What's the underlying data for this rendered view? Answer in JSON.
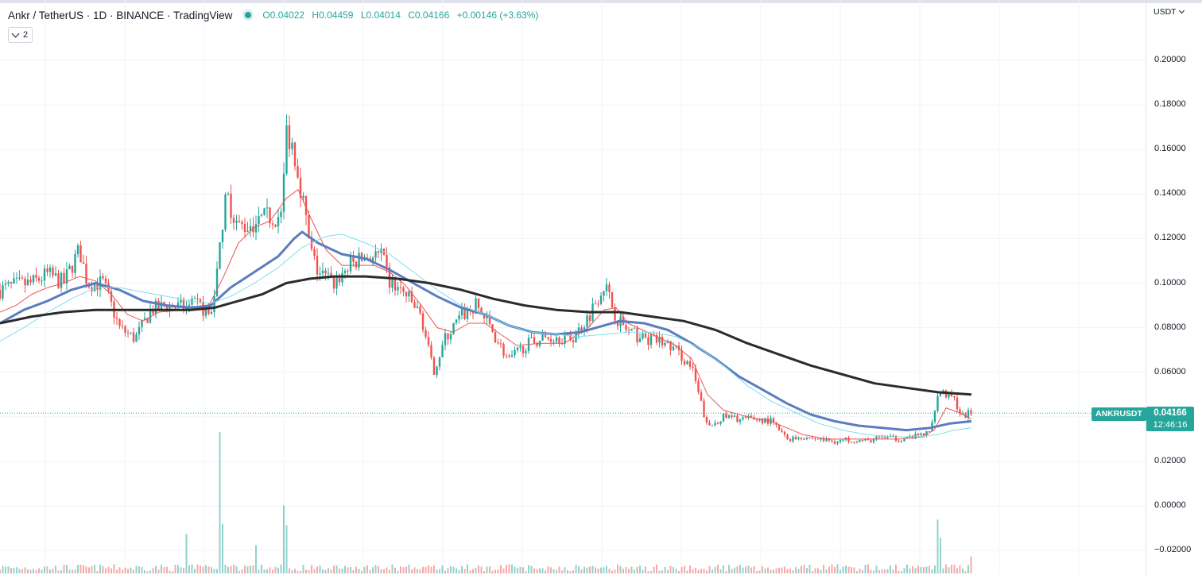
{
  "legend": {
    "title": "Ankr / TetherUS · 1D · BINANCE · TradingView",
    "open": "O0.04022",
    "high": "H0.04459",
    "low": "L0.04014",
    "close": "C0.04166",
    "change": "+0.00146 (+3.63%)",
    "collapse_count": "2"
  },
  "axis": {
    "currency": "USDT",
    "labels": [
      "0.20000",
      "0.18000",
      "0.16000",
      "0.14000",
      "0.12000",
      "0.10000",
      "0.08000",
      "0.06000",
      "0.04000",
      "0.02000",
      "0.00000",
      "−0.02000"
    ]
  },
  "last_price": {
    "symbol": "ANKRUSDT",
    "price": "0.04166",
    "countdown": "12:46:16",
    "color": "#26a69a"
  },
  "colors": {
    "up": "#26a69a",
    "down": "#ef5350",
    "ma_fast": "#ef5350",
    "ma_mid": "#5b7dbf",
    "ma_aqua": "#80deea",
    "ma_long": "#2b2b2b"
  },
  "chart_data": {
    "type": "candlestick",
    "symbol": "ANKRUSDT",
    "interval": "1D",
    "ylim": [
      -0.02,
      0.2
    ],
    "last": 0.04166,
    "path_points": [
      [
        0,
        0.097
      ],
      [
        20,
        0.099
      ],
      [
        40,
        0.1
      ],
      [
        60,
        0.104
      ],
      [
        80,
        0.1
      ],
      [
        100,
        0.115
      ],
      [
        110,
        0.1
      ],
      [
        130,
        0.1
      ],
      [
        150,
        0.08
      ],
      [
        170,
        0.075
      ],
      [
        190,
        0.088
      ],
      [
        210,
        0.09
      ],
      [
        230,
        0.089
      ],
      [
        250,
        0.09
      ],
      [
        265,
        0.085
      ],
      [
        275,
        0.11
      ],
      [
        285,
        0.14
      ],
      [
        300,
        0.125
      ],
      [
        320,
        0.127
      ],
      [
        340,
        0.13
      ],
      [
        355,
        0.13
      ],
      [
        360,
        0.17
      ],
      [
        370,
        0.16
      ],
      [
        380,
        0.14
      ],
      [
        390,
        0.115
      ],
      [
        400,
        0.105
      ],
      [
        420,
        0.1
      ],
      [
        440,
        0.108
      ],
      [
        460,
        0.112
      ],
      [
        480,
        0.112
      ],
      [
        490,
        0.1
      ],
      [
        510,
        0.095
      ],
      [
        530,
        0.085
      ],
      [
        545,
        0.06
      ],
      [
        560,
        0.075
      ],
      [
        580,
        0.085
      ],
      [
        600,
        0.09
      ],
      [
        620,
        0.078
      ],
      [
        640,
        0.065
      ],
      [
        660,
        0.072
      ],
      [
        680,
        0.075
      ],
      [
        700,
        0.076
      ],
      [
        720,
        0.075
      ],
      [
        740,
        0.085
      ],
      [
        760,
        0.1
      ],
      [
        775,
        0.085
      ],
      [
        790,
        0.078
      ],
      [
        810,
        0.075
      ],
      [
        830,
        0.074
      ],
      [
        850,
        0.07
      ],
      [
        870,
        0.062
      ],
      [
        890,
        0.035
      ],
      [
        910,
        0.04
      ],
      [
        930,
        0.039
      ],
      [
        950,
        0.039
      ],
      [
        970,
        0.038
      ],
      [
        990,
        0.03
      ],
      [
        1010,
        0.031
      ],
      [
        1030,
        0.03
      ],
      [
        1050,
        0.029
      ],
      [
        1070,
        0.03
      ],
      [
        1090,
        0.029
      ],
      [
        1110,
        0.031
      ],
      [
        1130,
        0.03
      ],
      [
        1150,
        0.031
      ],
      [
        1170,
        0.033
      ],
      [
        1180,
        0.052
      ],
      [
        1190,
        0.05
      ],
      [
        1200,
        0.048
      ],
      [
        1210,
        0.04
      ],
      [
        1220,
        0.0417
      ]
    ],
    "moving_averages": [
      {
        "color": "#ef5350",
        "points": [
          [
            0,
            0.087
          ],
          [
            20,
            0.09
          ],
          [
            40,
            0.095
          ],
          [
            60,
            0.098
          ],
          [
            80,
            0.1
          ],
          [
            100,
            0.103
          ],
          [
            120,
            0.101
          ],
          [
            140,
            0.095
          ],
          [
            160,
            0.086
          ],
          [
            180,
            0.083
          ],
          [
            200,
            0.087
          ],
          [
            230,
            0.088
          ],
          [
            260,
            0.088
          ],
          [
            280,
            0.102
          ],
          [
            300,
            0.118
          ],
          [
            320,
            0.125
          ],
          [
            340,
            0.128
          ],
          [
            360,
            0.138
          ],
          [
            375,
            0.142
          ],
          [
            390,
            0.13
          ],
          [
            410,
            0.115
          ],
          [
            430,
            0.108
          ],
          [
            450,
            0.108
          ],
          [
            470,
            0.108
          ],
          [
            490,
            0.105
          ],
          [
            510,
            0.099
          ],
          [
            530,
            0.09
          ],
          [
            550,
            0.08
          ],
          [
            570,
            0.078
          ],
          [
            590,
            0.082
          ],
          [
            610,
            0.082
          ],
          [
            630,
            0.077
          ],
          [
            650,
            0.072
          ],
          [
            680,
            0.073
          ],
          [
            710,
            0.073
          ],
          [
            740,
            0.08
          ],
          [
            760,
            0.088
          ],
          [
            775,
            0.089
          ],
          [
            790,
            0.082
          ],
          [
            820,
            0.077
          ],
          [
            850,
            0.072
          ],
          [
            870,
            0.066
          ],
          [
            890,
            0.05
          ],
          [
            910,
            0.043
          ],
          [
            940,
            0.04
          ],
          [
            970,
            0.038
          ],
          [
            990,
            0.035
          ],
          [
            1010,
            0.032
          ],
          [
            1040,
            0.03
          ],
          [
            1070,
            0.03
          ],
          [
            1100,
            0.03
          ],
          [
            1130,
            0.03
          ],
          [
            1160,
            0.031
          ],
          [
            1175,
            0.034
          ],
          [
            1190,
            0.044
          ],
          [
            1205,
            0.042
          ],
          [
            1222,
            0.039
          ]
        ]
      },
      {
        "color": "#5b7dbf",
        "width": 3,
        "points": [
          [
            0,
            0.082
          ],
          [
            30,
            0.088
          ],
          [
            60,
            0.092
          ],
          [
            90,
            0.097
          ],
          [
            120,
            0.1
          ],
          [
            150,
            0.097
          ],
          [
            180,
            0.092
          ],
          [
            210,
            0.09
          ],
          [
            240,
            0.089
          ],
          [
            265,
            0.09
          ],
          [
            290,
            0.098
          ],
          [
            320,
            0.105
          ],
          [
            350,
            0.112
          ],
          [
            370,
            0.12
          ],
          [
            380,
            0.123
          ],
          [
            400,
            0.118
          ],
          [
            430,
            0.113
          ],
          [
            460,
            0.111
          ],
          [
            490,
            0.106
          ],
          [
            520,
            0.1
          ],
          [
            550,
            0.094
          ],
          [
            580,
            0.089
          ],
          [
            610,
            0.086
          ],
          [
            640,
            0.081
          ],
          [
            670,
            0.078
          ],
          [
            700,
            0.077
          ],
          [
            730,
            0.078
          ],
          [
            760,
            0.081
          ],
          [
            780,
            0.083
          ],
          [
            810,
            0.082
          ],
          [
            840,
            0.079
          ],
          [
            870,
            0.073
          ],
          [
            900,
            0.066
          ],
          [
            930,
            0.058
          ],
          [
            960,
            0.052
          ],
          [
            990,
            0.046
          ],
          [
            1020,
            0.041
          ],
          [
            1050,
            0.038
          ],
          [
            1080,
            0.036
          ],
          [
            1110,
            0.035
          ],
          [
            1140,
            0.034
          ],
          [
            1170,
            0.035
          ],
          [
            1195,
            0.037
          ],
          [
            1222,
            0.038
          ]
        ]
      },
      {
        "color": "#80deea",
        "points": [
          [
            0,
            0.074
          ],
          [
            30,
            0.08
          ],
          [
            60,
            0.087
          ],
          [
            90,
            0.093
          ],
          [
            120,
            0.098
          ],
          [
            150,
            0.098
          ],
          [
            180,
            0.096
          ],
          [
            210,
            0.094
          ],
          [
            240,
            0.092
          ],
          [
            265,
            0.091
          ],
          [
            290,
            0.094
          ],
          [
            320,
            0.1
          ],
          [
            350,
            0.107
          ],
          [
            380,
            0.116
          ],
          [
            410,
            0.121
          ],
          [
            430,
            0.122
          ],
          [
            460,
            0.118
          ],
          [
            490,
            0.113
          ],
          [
            520,
            0.105
          ],
          [
            550,
            0.097
          ],
          [
            580,
            0.09
          ],
          [
            610,
            0.086
          ],
          [
            640,
            0.081
          ],
          [
            670,
            0.078
          ],
          [
            700,
            0.077
          ],
          [
            730,
            0.076
          ],
          [
            760,
            0.077
          ],
          [
            790,
            0.078
          ],
          [
            820,
            0.078
          ],
          [
            850,
            0.076
          ],
          [
            880,
            0.071
          ],
          [
            910,
            0.063
          ],
          [
            940,
            0.054
          ],
          [
            970,
            0.047
          ],
          [
            1000,
            0.042
          ],
          [
            1030,
            0.037
          ],
          [
            1060,
            0.034
          ],
          [
            1090,
            0.032
          ],
          [
            1120,
            0.031
          ],
          [
            1150,
            0.031
          ],
          [
            1180,
            0.032
          ],
          [
            1200,
            0.034
          ],
          [
            1222,
            0.035
          ]
        ]
      },
      {
        "color": "#2b2b2b",
        "width": 3,
        "points": [
          [
            0,
            0.082
          ],
          [
            40,
            0.085
          ],
          [
            80,
            0.087
          ],
          [
            120,
            0.088
          ],
          [
            160,
            0.088
          ],
          [
            200,
            0.088
          ],
          [
            240,
            0.088
          ],
          [
            270,
            0.089
          ],
          [
            300,
            0.092
          ],
          [
            330,
            0.095
          ],
          [
            360,
            0.1
          ],
          [
            390,
            0.102
          ],
          [
            420,
            0.103
          ],
          [
            460,
            0.103
          ],
          [
            500,
            0.102
          ],
          [
            540,
            0.1
          ],
          [
            580,
            0.097
          ],
          [
            620,
            0.093
          ],
          [
            660,
            0.09
          ],
          [
            700,
            0.088
          ],
          [
            740,
            0.087
          ],
          [
            780,
            0.087
          ],
          [
            820,
            0.085
          ],
          [
            860,
            0.083
          ],
          [
            900,
            0.079
          ],
          [
            940,
            0.073
          ],
          [
            980,
            0.068
          ],
          [
            1020,
            0.063
          ],
          [
            1060,
            0.059
          ],
          [
            1100,
            0.055
          ],
          [
            1140,
            0.053
          ],
          [
            1180,
            0.051
          ],
          [
            1222,
            0.05
          ]
        ]
      }
    ],
    "volume_spikes": [
      [
        233,
        0.28
      ],
      [
        275,
        1
      ],
      [
        280,
        0.35
      ],
      [
        321,
        0.2
      ],
      [
        357,
        0.48
      ],
      [
        362,
        0.34
      ],
      [
        1178,
        0.38
      ],
      [
        1182,
        0.25
      ],
      [
        1220,
        0.12
      ]
    ]
  }
}
